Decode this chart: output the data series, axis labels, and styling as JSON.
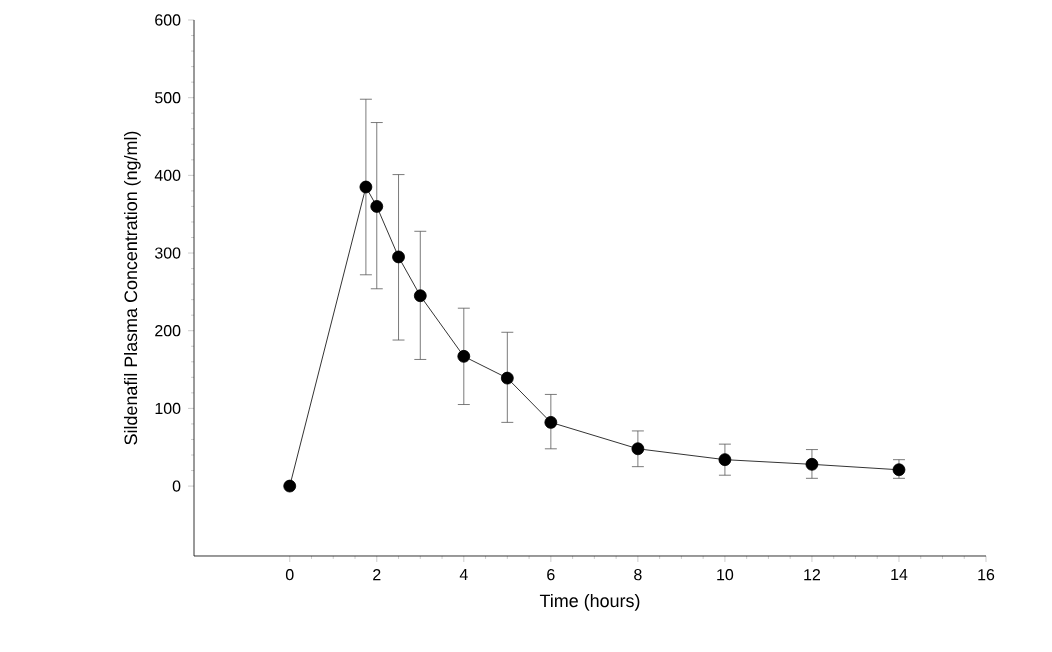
{
  "chart_data": {
    "type": "line",
    "xlabel": "Time (hours)",
    "ylabel": "Sildenafil Plasma Concentration (ng/ml)",
    "x": [
      0,
      1.75,
      2,
      2.5,
      3,
      4,
      5,
      6,
      8,
      10,
      12,
      14
    ],
    "series": [
      {
        "color": "#000000",
        "values": [
          0,
          385,
          360,
          295,
          245,
          167,
          139,
          82,
          48,
          34,
          28,
          21
        ],
        "errors": [
          null,
          [
            272,
            498
          ],
          [
            254,
            468
          ],
          [
            188,
            401
          ],
          [
            163,
            328
          ],
          [
            105,
            229
          ],
          [
            82,
            198
          ],
          [
            48,
            118
          ],
          [
            25,
            71
          ],
          [
            14,
            54
          ],
          [
            10,
            47
          ],
          [
            10,
            34
          ]
        ]
      }
    ],
    "marker": "circle",
    "xlim": [
      -2.2,
      16
    ],
    "ylim": [
      -90,
      600
    ],
    "xticks": [
      0,
      2,
      4,
      6,
      8,
      10,
      12,
      14,
      16
    ],
    "yticks": [
      0,
      100,
      200,
      300,
      400,
      500,
      600
    ]
  }
}
